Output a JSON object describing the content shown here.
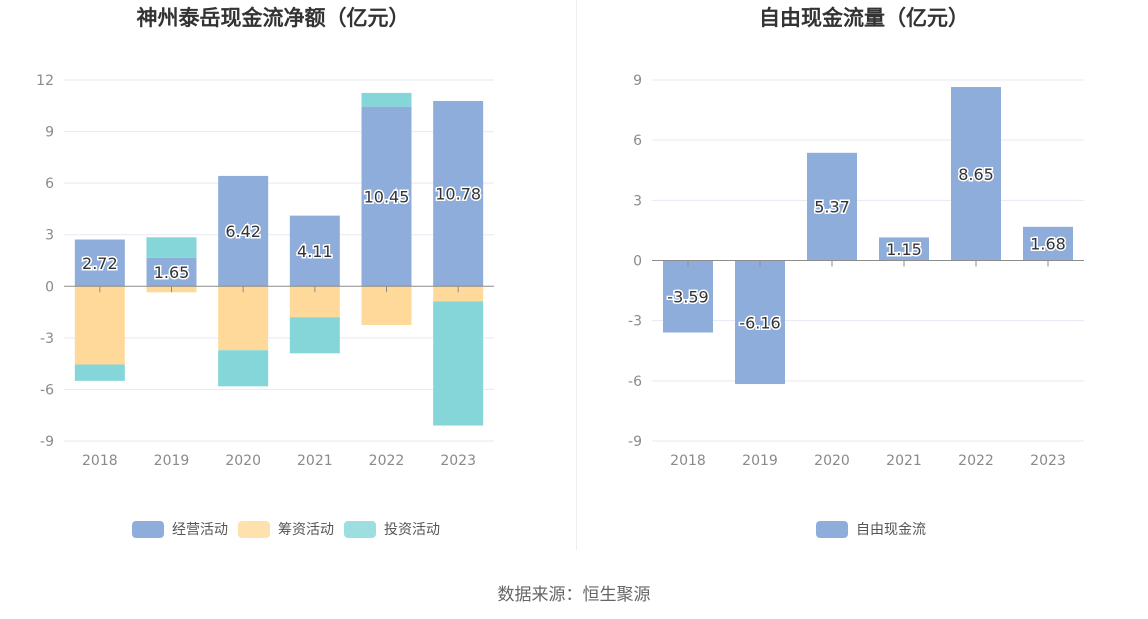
{
  "chart_data": [
    {
      "type": "bar",
      "stacked": true,
      "title": "神州泰岳现金流净额（亿元）",
      "categories": [
        "2018",
        "2019",
        "2020",
        "2021",
        "2022",
        "2023"
      ],
      "ylim": [
        -9,
        12
      ],
      "yticks": [
        12,
        9,
        6,
        3,
        0,
        -3,
        -6,
        -9
      ],
      "series": [
        {
          "name": "经营活动",
          "color": "#8eaddb",
          "values": [
            2.72,
            1.65,
            6.42,
            4.11,
            10.45,
            10.78
          ],
          "labeled": true
        },
        {
          "name": "筹资活动",
          "color": "#ffd99a",
          "values": [
            -4.55,
            -0.35,
            -3.72,
            -1.8,
            -2.25,
            -0.88
          ]
        },
        {
          "name": "投资活动",
          "color": "#85d6d8",
          "values": [
            -0.95,
            1.2,
            -2.1,
            -2.1,
            0.8,
            -7.22
          ]
        }
      ],
      "legend": [
        "经营活动",
        "筹资活动",
        "投资活动"
      ],
      "legend_position": "bottom"
    },
    {
      "type": "bar",
      "title": "自由现金流量（亿元）",
      "categories": [
        "2018",
        "2019",
        "2020",
        "2021",
        "2022",
        "2023"
      ],
      "ylim": [
        -9,
        9
      ],
      "yticks": [
        9,
        6,
        3,
        0,
        -3,
        -6,
        -9
      ],
      "series": [
        {
          "name": "自由现金流",
          "color": "#8eaddb",
          "values": [
            -3.59,
            -6.16,
            5.37,
            1.15,
            8.65,
            1.68
          ],
          "labeled": true
        }
      ],
      "legend": [
        "自由现金流"
      ],
      "legend_position": "bottom"
    }
  ],
  "source_text": "数据来源：恒生聚源"
}
